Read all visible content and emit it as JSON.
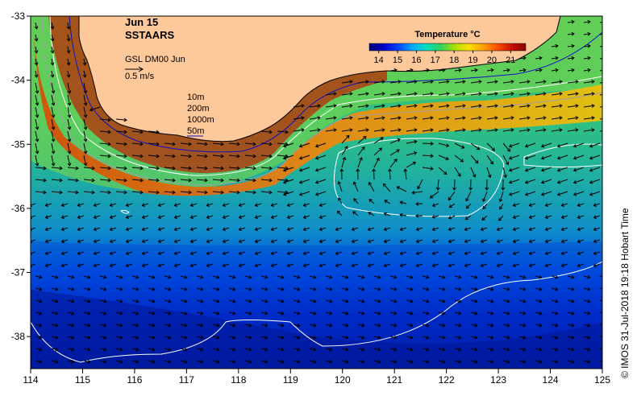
{
  "title": {
    "date": "Jun 15",
    "product": "SSTAARS"
  },
  "vector_legend": {
    "label": "GSL DM00 Jun",
    "scale": "0.5 m/s"
  },
  "depth_legend": {
    "items": [
      "10m",
      "200m",
      "1000m",
      "50m"
    ]
  },
  "colorbar": {
    "title": "Temperature °C",
    "ticks": [
      "14",
      "15",
      "16",
      "17",
      "18",
      "19",
      "20",
      "21"
    ],
    "range": [
      13.5,
      21.8
    ],
    "colors": [
      "#00007a",
      "#0000c8",
      "#0040ff",
      "#00a8ff",
      "#00e0c0",
      "#30d060",
      "#a8e000",
      "#ffe000",
      "#ffa000",
      "#ff5000",
      "#c81000",
      "#8a0000"
    ]
  },
  "axes": {
    "x_ticks": [
      "114",
      "115",
      "116",
      "117",
      "118",
      "119",
      "120",
      "121",
      "122",
      "123",
      "124",
      "125"
    ],
    "y_ticks": [
      "-33",
      "-34",
      "-35",
      "-36",
      "-37",
      "-38"
    ],
    "xlim": [
      114,
      125
    ],
    "ylim": [
      -38.5,
      -33
    ]
  },
  "credit": "© IMOS 31-Jul-2018 19:18 Hobart Time",
  "colors": {
    "land": "#fdc89a",
    "isobath_10m": "#000000",
    "isobath_200m": "#ffffff",
    "isobath_1000m": "#a0a0a0",
    "isobath_50m": "#1010c0"
  }
}
